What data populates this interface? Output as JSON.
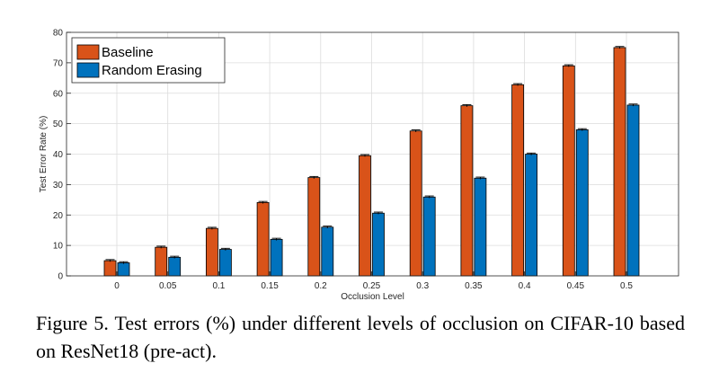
{
  "chart_data": {
    "type": "bar",
    "title": "",
    "xlabel": "Occlusion Level",
    "ylabel": "Test Error Rate (%)",
    "ylim": [
      0,
      80
    ],
    "yticks": [
      0,
      10,
      20,
      30,
      40,
      50,
      60,
      70,
      80
    ],
    "categories": [
      "0",
      "0.05",
      "0.1",
      "0.15",
      "0.2",
      "0.25",
      "0.3",
      "0.35",
      "0.4",
      "0.45",
      "0.5"
    ],
    "series": [
      {
        "name": "Baseline",
        "color": "#D95319",
        "values": [
          5.0,
          9.4,
          15.6,
          24.1,
          32.3,
          39.5,
          47.6,
          55.9,
          62.8,
          69.0,
          75.0
        ]
      },
      {
        "name": "Random Erasing",
        "color": "#0072BD",
        "values": [
          4.3,
          6.1,
          8.7,
          12.0,
          16.0,
          20.6,
          25.9,
          32.1,
          40.0,
          48.0,
          56.1
        ]
      }
    ],
    "grid": true,
    "legend_position": "top-left",
    "error_bars": true
  },
  "caption": "Figure 5. Test errors (%) under different levels of occlusion on CIFAR-10 based on ResNet18 (pre-act)."
}
